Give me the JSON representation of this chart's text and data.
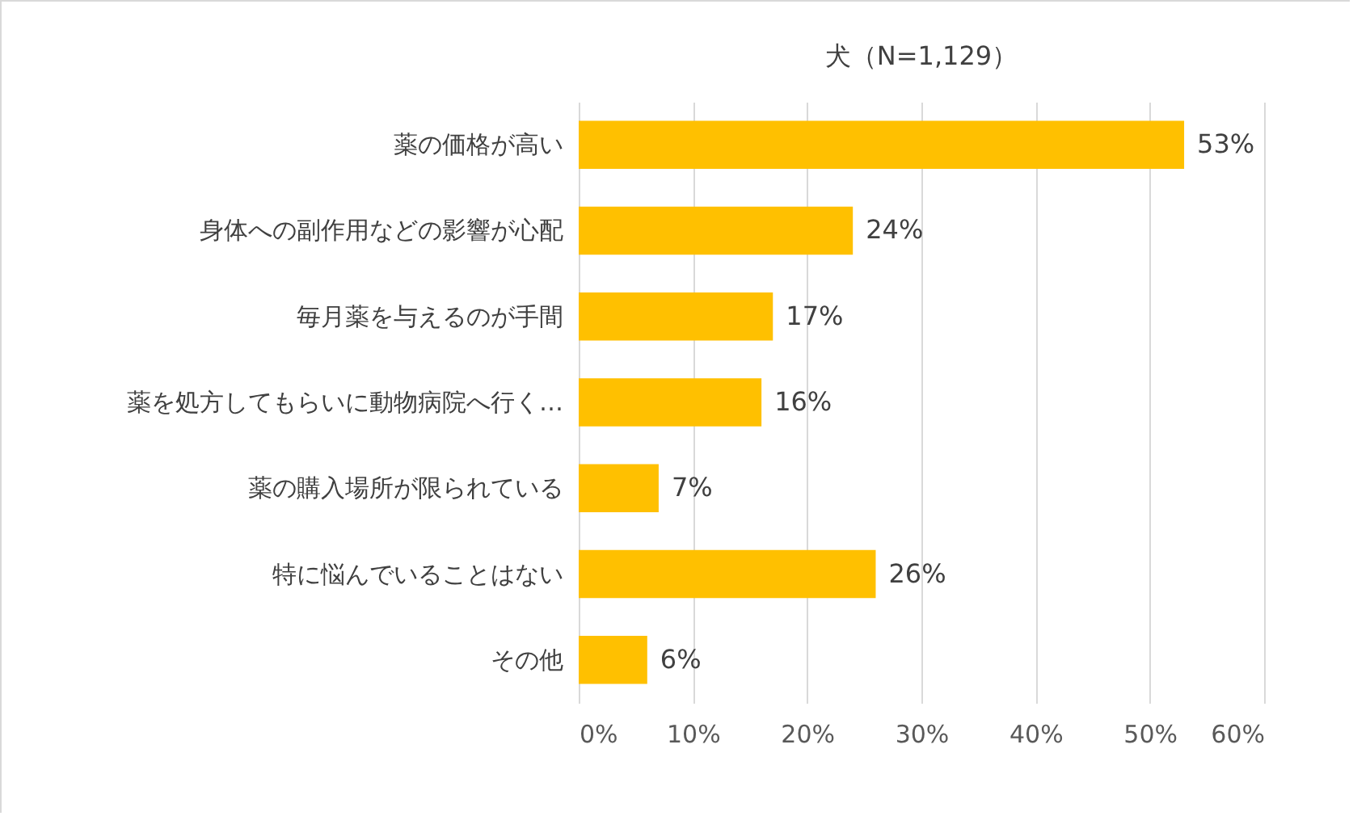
{
  "chart_data": {
    "type": "bar",
    "orientation": "horizontal",
    "title": "犬（N=1,129）",
    "categories": [
      "薬の価格が高い",
      "身体への副作用などの影響が心配",
      "毎月薬を与えるのが手間",
      "薬を処方してもらいに動物病院へ行く…",
      "薬の購入場所が限られている",
      "特に悩んでいることはない",
      "その他"
    ],
    "values": [
      53,
      24,
      17,
      16,
      7,
      26,
      6
    ],
    "value_labels": [
      "53%",
      "24%",
      "17%",
      "16%",
      "7%",
      "26%",
      "6%"
    ],
    "color": "#ffc000",
    "xlim": [
      0,
      60
    ],
    "xticks": [
      {
        "value": 0,
        "label": "0%"
      },
      {
        "value": 10,
        "label": "10%"
      },
      {
        "value": 20,
        "label": "20%"
      },
      {
        "value": 30,
        "label": "30%"
      },
      {
        "value": 40,
        "label": "40%"
      },
      {
        "value": 50,
        "label": "50%"
      },
      {
        "value": 60,
        "label": "60%"
      }
    ],
    "grid": "x"
  }
}
